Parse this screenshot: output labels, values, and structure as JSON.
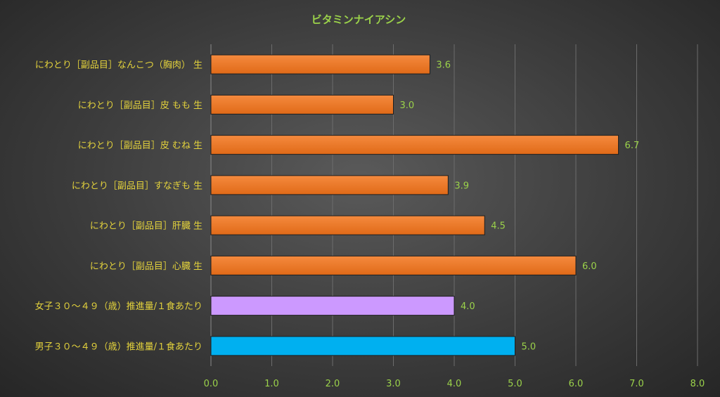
{
  "chart_data": {
    "type": "bar",
    "orientation": "horizontal",
    "title": "ビタミンナイアシン",
    "categories": [
      "にわとり［副品目］なんこつ（胸肉） 生",
      "にわとり［副品目］皮 もも 生",
      "にわとり［副品目］皮 むね 生",
      "にわとり［副品目］すなぎも 生",
      "にわとり［副品目］肝臓 生",
      "にわとり［副品目］心臓 生",
      "女子３０～４９（歳）推進量/１食あたり",
      "男子３０～４９（歳）推進量/１食あたり"
    ],
    "values": [
      3.6,
      3.0,
      6.7,
      3.9,
      4.5,
      6.0,
      4.0,
      5.0
    ],
    "value_labels": [
      "3.6",
      "3.0",
      "6.7",
      "3.9",
      "4.5",
      "6.0",
      "4.0",
      "5.0"
    ],
    "bar_colors": [
      "#f07a2a",
      "#f07a2a",
      "#f07a2a",
      "#f07a2a",
      "#f07a2a",
      "#f07a2a",
      "#cc99ff",
      "#00b0f0"
    ],
    "xlim": [
      0,
      8
    ],
    "x_ticks": [
      "0.0",
      "1.0",
      "2.0",
      "3.0",
      "4.0",
      "5.0",
      "6.0",
      "7.0",
      "8.0"
    ],
    "grid": true,
    "legend": "none"
  }
}
